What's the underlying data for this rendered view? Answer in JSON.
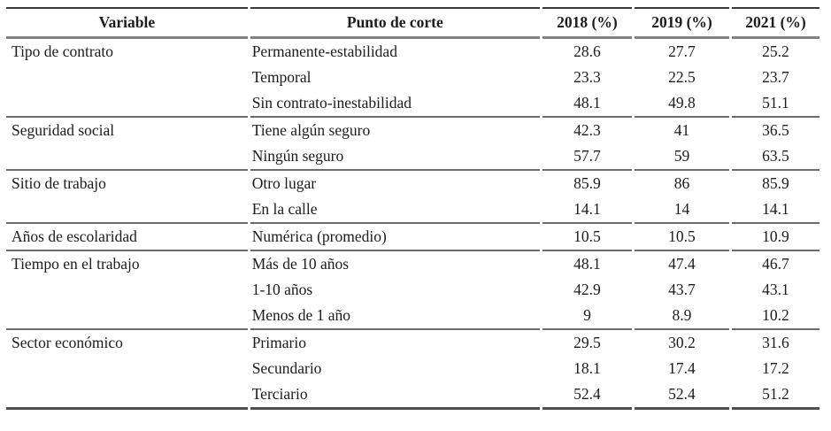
{
  "table": {
    "columns": [
      "Variable",
      "Punto de corte",
      "2018 (%)",
      "2019 (%)",
      "2021 (%)"
    ],
    "sections": [
      {
        "variable": "Tipo de contrato",
        "rows": [
          {
            "label": "Permanente-estabilidad",
            "v2018": "28.6",
            "v2019": "27.7",
            "v2021": "25.2"
          },
          {
            "label": "Temporal",
            "v2018": "23.3",
            "v2019": "22.5",
            "v2021": "23.7"
          },
          {
            "label": "Sin contrato-inestabilidad",
            "v2018": "48.1",
            "v2019": "49.8",
            "v2021": "51.1"
          }
        ]
      },
      {
        "variable": "Seguridad social",
        "rows": [
          {
            "label": "Tiene algún seguro",
            "v2018": "42.3",
            "v2019": "41",
            "v2021": "36.5"
          },
          {
            "label": "Ningún seguro",
            "v2018": "57.7",
            "v2019": "59",
            "v2021": "63.5"
          }
        ]
      },
      {
        "variable": "Sitio de trabajo",
        "rows": [
          {
            "label": "Otro lugar",
            "v2018": "85.9",
            "v2019": "86",
            "v2021": "85.9"
          },
          {
            "label": "En la calle",
            "v2018": "14.1",
            "v2019": "14",
            "v2021": "14.1"
          }
        ]
      },
      {
        "variable": "Años de escolaridad",
        "rows": [
          {
            "label": "Numérica (promedio)",
            "v2018": "10.5",
            "v2019": "10.5",
            "v2021": "10.9"
          }
        ]
      },
      {
        "variable": "Tiempo en el trabajo",
        "rows": [
          {
            "label": "Más de 10 años",
            "v2018": "48.1",
            "v2019": "47.4",
            "v2021": "46.7"
          },
          {
            "label": "1-10 años",
            "v2018": "42.9",
            "v2019": "43.7",
            "v2021": "43.1"
          },
          {
            "label": "Menos de 1 año",
            "v2018": "9",
            "v2019": "8.9",
            "v2021": "10.2"
          }
        ]
      },
      {
        "variable": "Sector económico",
        "rows": [
          {
            "label": "Primario",
            "v2018": "29.5",
            "v2019": "30.2",
            "v2021": "31.6"
          },
          {
            "label": "Secundario",
            "v2018": "18.1",
            "v2019": "17.4",
            "v2021": "17.2"
          },
          {
            "label": "Terciario",
            "v2018": "52.4",
            "v2019": "52.4",
            "v2021": "51.2"
          }
        ]
      }
    ],
    "colors": {
      "text": "#1c1c1c",
      "rule_dark": "#3a3a3a",
      "rule_gray": "#828282",
      "rule_section": "#6b6b6b",
      "rule_bottom": "#4f4f4f",
      "background": "#ffffff"
    }
  }
}
